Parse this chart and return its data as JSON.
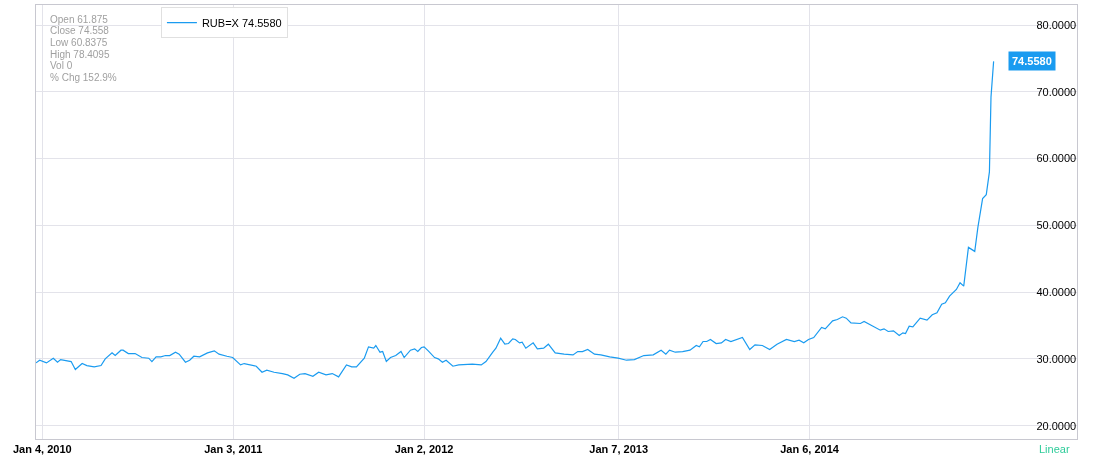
{
  "chart_data": {
    "type": "line",
    "x": [
      "2009-12-23",
      "2009-12-30",
      "2010-01-12",
      "2010-01-25",
      "2010-02-02",
      "2010-02-08",
      "2010-02-28",
      "2010-03-08",
      "2010-03-21",
      "2010-03-30",
      "2010-04-13",
      "2010-04-26",
      "2010-05-04",
      "2010-05-17",
      "2010-05-23",
      "2010-06-03",
      "2010-06-07",
      "2010-06-17",
      "2010-06-30",
      "2010-07-13",
      "2010-07-26",
      "2010-08-01",
      "2010-08-09",
      "2010-08-18",
      "2010-08-27",
      "2010-09-04",
      "2010-09-15",
      "2010-09-22",
      "2010-10-04",
      "2010-10-12",
      "2010-10-20",
      "2010-10-31",
      "2010-11-15",
      "2010-11-28",
      "2010-12-07",
      "2010-12-22",
      "2011-01-02",
      "2011-01-17",
      "2011-01-24",
      "2011-02-16",
      "2011-02-27",
      "2011-03-08",
      "2011-03-22",
      "2011-04-07",
      "2011-04-17",
      "2011-04-29",
      "2011-05-10",
      "2011-05-20",
      "2011-06-04",
      "2011-06-15",
      "2011-06-29",
      "2011-07-11",
      "2011-07-23",
      "2011-08-07",
      "2011-08-17",
      "2011-08-26",
      "2011-09-10",
      "2011-09-18",
      "2011-09-28",
      "2011-10-02",
      "2011-10-10",
      "2011-10-15",
      "2011-10-22",
      "2011-10-30",
      "2011-11-09",
      "2011-11-19",
      "2011-11-25",
      "2011-12-07",
      "2011-12-15",
      "2011-12-21",
      "2011-12-28",
      "2012-01-02",
      "2012-01-10",
      "2012-01-22",
      "2012-01-29",
      "2012-02-06",
      "2012-02-13",
      "2012-02-26",
      "2012-03-08",
      "2012-04-03",
      "2012-04-20",
      "2012-04-29",
      "2012-05-12",
      "2012-05-18",
      "2012-05-27",
      "2012-06-04",
      "2012-06-11",
      "2012-06-19",
      "2012-06-24",
      "2012-07-02",
      "2012-07-07",
      "2012-07-14",
      "2012-07-28",
      "2012-08-05",
      "2012-08-17",
      "2012-08-26",
      "2012-09-08",
      "2012-09-25",
      "2012-10-12",
      "2012-10-21",
      "2012-10-30",
      "2012-11-09",
      "2012-11-22",
      "2012-12-04",
      "2012-12-21",
      "2013-01-06",
      "2013-01-22",
      "2013-02-06",
      "2013-02-24",
      "2013-03-14",
      "2013-03-29",
      "2013-04-07",
      "2013-04-14",
      "2013-04-25",
      "2013-05-09",
      "2013-05-23",
      "2013-06-04",
      "2013-06-10",
      "2013-06-17",
      "2013-06-24",
      "2013-07-01",
      "2013-07-12",
      "2013-07-22",
      "2013-07-30",
      "2013-08-09",
      "2013-08-31",
      "2013-09-14",
      "2013-09-24",
      "2013-10-08",
      "2013-10-22",
      "2013-11-05",
      "2013-11-23",
      "2013-12-08",
      "2013-12-17",
      "2013-12-26",
      "2014-01-04",
      "2014-01-14",
      "2014-01-29",
      "2014-02-05",
      "2014-02-19",
      "2014-02-28",
      "2014-03-10",
      "2014-03-17",
      "2014-03-26",
      "2014-04-13",
      "2014-04-20",
      "2014-05-21",
      "2014-05-28",
      "2014-06-05",
      "2014-06-15",
      "2014-06-26",
      "2014-07-03",
      "2014-07-08",
      "2014-07-15",
      "2014-07-22",
      "2014-08-05",
      "2014-08-18",
      "2014-08-28",
      "2014-09-06",
      "2014-09-15",
      "2014-09-22",
      "2014-09-30",
      "2014-10-13",
      "2014-10-20",
      "2014-10-27",
      "2014-11-05",
      "2014-11-17",
      "2014-11-23",
      "2014-12-02",
      "2014-12-09",
      "2014-12-15",
      "2014-12-18",
      "2014-12-23"
    ],
    "series": [
      {
        "name": "RUB=X 74.5580",
        "color": "#1a9bf0",
        "values": [
          29.4,
          29.8,
          29.4,
          30.1,
          29.5,
          29.9,
          29.6,
          28.4,
          29.3,
          29.0,
          28.8,
          29.0,
          30.0,
          30.9,
          30.5,
          31.3,
          31.3,
          30.8,
          30.8,
          30.2,
          30.1,
          29.6,
          30.3,
          30.3,
          30.5,
          30.5,
          31.0,
          30.7,
          29.5,
          29.8,
          30.4,
          30.3,
          30.9,
          31.2,
          30.7,
          30.4,
          30.2,
          29.1,
          29.3,
          28.9,
          28.0,
          28.3,
          28.0,
          27.8,
          27.6,
          27.1,
          27.7,
          27.8,
          27.4,
          28.0,
          27.6,
          27.8,
          27.3,
          29.1,
          28.8,
          28.8,
          30.1,
          31.8,
          31.6,
          32.0,
          31.0,
          31.1,
          29.6,
          30.2,
          30.5,
          31.1,
          30.2,
          31.3,
          31.5,
          31.1,
          31.7,
          31.8,
          31.2,
          30.2,
          30.0,
          29.5,
          29.8,
          28.9,
          29.1,
          29.2,
          29.1,
          29.6,
          31.0,
          31.6,
          33.1,
          32.2,
          32.3,
          33.0,
          32.9,
          32.4,
          32.5,
          31.6,
          32.4,
          31.5,
          31.6,
          32.2,
          30.9,
          30.7,
          30.6,
          31.1,
          31.1,
          31.4,
          30.7,
          30.6,
          30.3,
          30.1,
          29.8,
          29.9,
          30.5,
          30.6,
          31.3,
          30.7,
          31.3,
          31.0,
          31.1,
          31.3,
          32.0,
          31.8,
          32.6,
          32.6,
          32.9,
          32.3,
          32.4,
          32.9,
          32.6,
          33.2,
          31.4,
          32.1,
          32.0,
          31.4,
          32.2,
          32.9,
          32.6,
          32.8,
          32.4,
          32.9,
          33.2,
          34.7,
          34.5,
          35.7,
          35.9,
          36.3,
          36.1,
          35.4,
          35.3,
          35.6,
          34.3,
          34.5,
          34.1,
          34.2,
          33.5,
          33.9,
          33.8,
          34.9,
          34.8,
          36.1,
          35.8,
          36.6,
          36.9,
          38.2,
          38.4,
          39.4,
          40.4,
          41.4,
          40.9,
          46.7,
          46.1,
          49.7,
          54.0,
          54.6,
          58.0,
          69.2,
          74.558
        ]
      }
    ],
    "xlim": [
      "2009-12-23",
      "2015-05-31"
    ],
    "xticks": [
      {
        "value": "2010-01-04",
        "label": "Jan 4, 2010"
      },
      {
        "value": "2011-01-03",
        "label": "Jan 3, 2011"
      },
      {
        "value": "2012-01-02",
        "label": "Jan 2, 2012"
      },
      {
        "value": "2013-01-07",
        "label": "Jan 7, 2013"
      },
      {
        "value": "2014-01-06",
        "label": "Jan 6, 2014"
      }
    ],
    "ylim": [
      18,
      83
    ],
    "yticks": [
      {
        "value": 20,
        "label": "20.0000"
      },
      {
        "value": 30,
        "label": "30.0000"
      },
      {
        "value": 40,
        "label": "40.0000"
      },
      {
        "value": 50,
        "label": "50.0000"
      },
      {
        "value": 60,
        "label": "60.0000"
      },
      {
        "value": 70,
        "label": "70.0000"
      },
      {
        "value": 80,
        "label": "80.0000"
      }
    ],
    "grid": true,
    "legend": "top left",
    "marker": "none",
    "line_style": "solid",
    "annotations": [
      "Open 61.875",
      "Close 74.558",
      "Low 60.8375",
      "High 78.4095",
      "Vol 0",
      "% Chg 152.9%",
      {
        "text": "74.5580",
        "x": "2014-12-23",
        "y": 74.558
      },
      "Linear"
    ]
  }
}
